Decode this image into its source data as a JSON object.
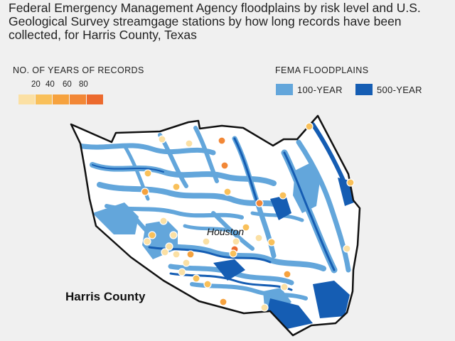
{
  "title": "Federal Emergency Management Agency floodplains by risk level and U.S. Geological Survey streamgage stations by how long records have been collected, for Harris County, Texas",
  "legend_years": {
    "heading": "NO. OF YEARS OF RECORDS",
    "ticks": [
      "20",
      "40",
      "60",
      "80"
    ],
    "colors": [
      "#fbe0a4",
      "#f9c05a",
      "#f6a23e",
      "#f28736",
      "#ec6a2e"
    ]
  },
  "legend_floodplains": {
    "heading": "FEMA FLOODPLAINS",
    "items": [
      {
        "label": "100-YEAR",
        "color": "#63a6db"
      },
      {
        "label": "500-YEAR",
        "color": "#155db3"
      }
    ]
  },
  "map": {
    "county_label": "Harris County",
    "city_label": "Houston",
    "county_fill": "#ffffff",
    "outside_fill": "#f0f0f0",
    "border_color": "#111111",
    "station_stroke": "#ffffff"
  }
}
